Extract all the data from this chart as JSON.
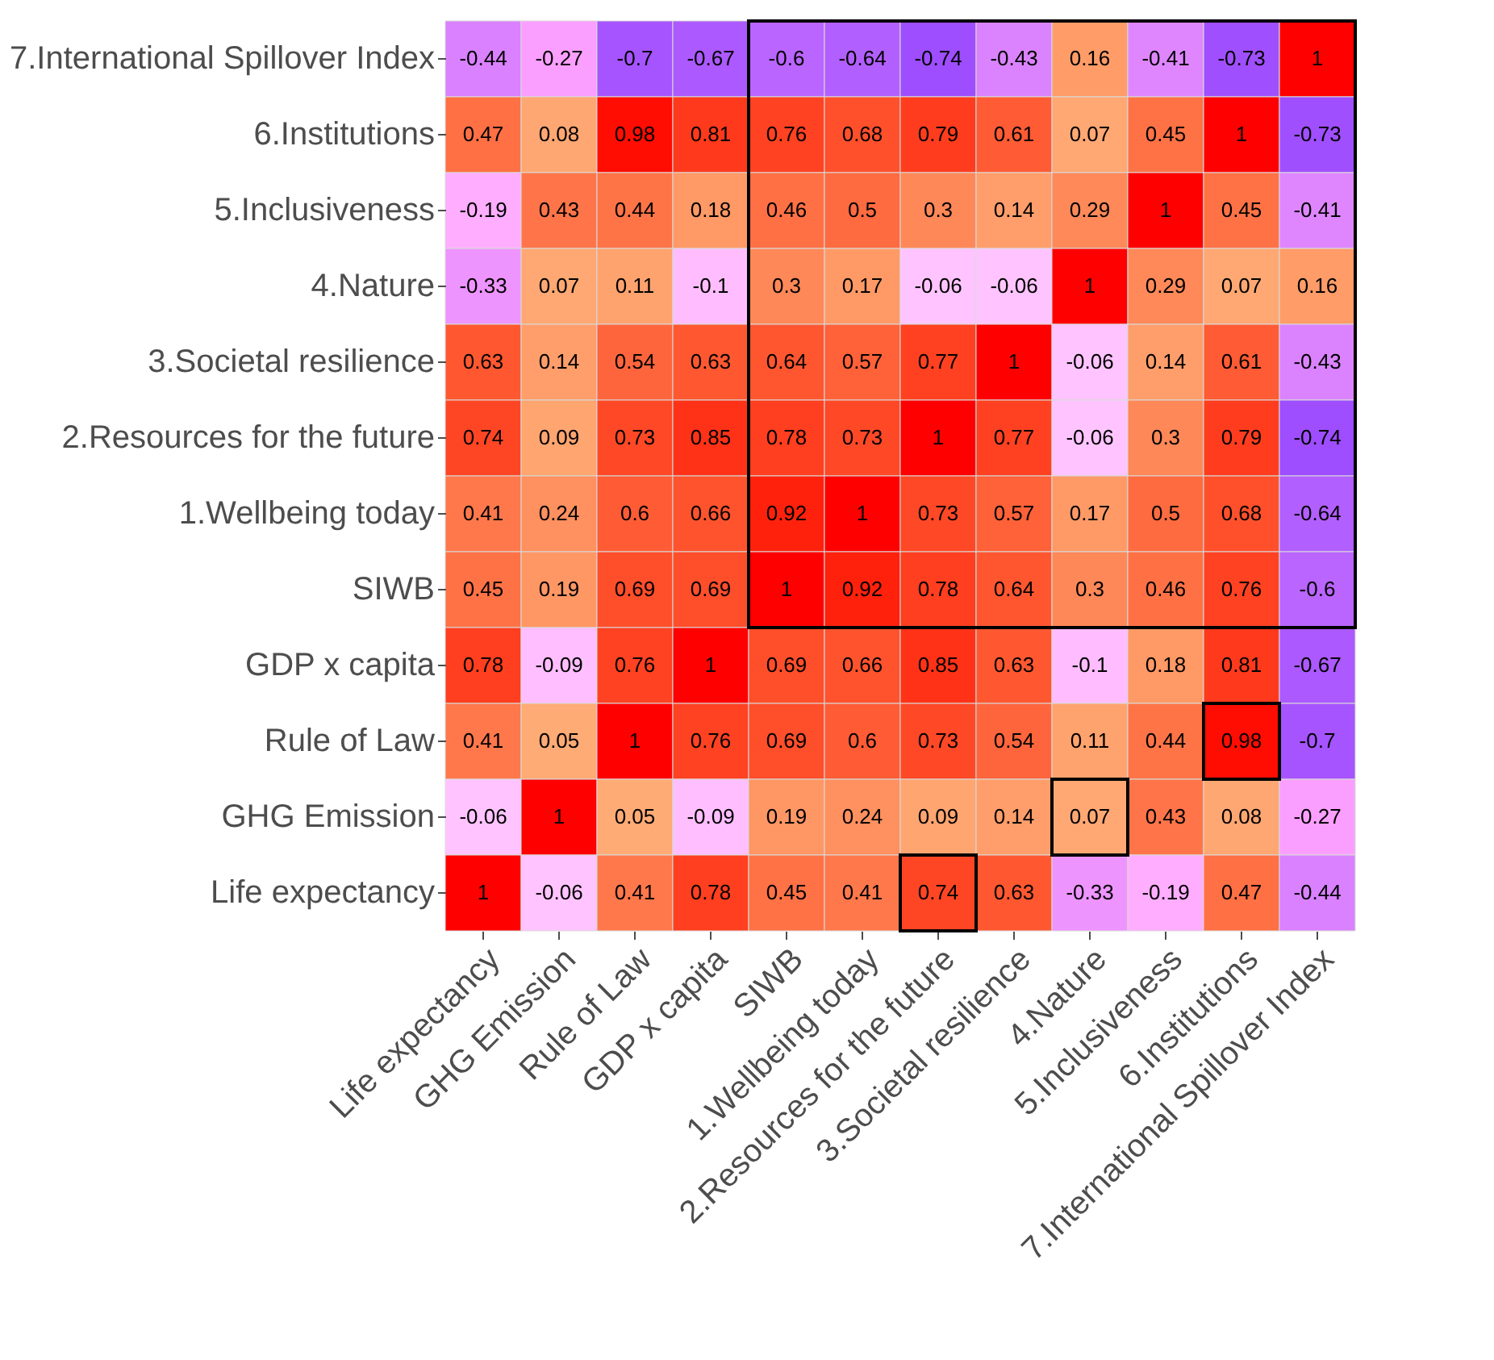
{
  "chart_data": {
    "type": "heatmap",
    "categories": [
      "Life expectancy",
      "GHG Emission",
      "Rule of Law",
      "GDP x capita",
      "SIWB",
      "1.Wellbeing today",
      "2.Resources for the future",
      "3.Societal resilience",
      "4.Nature",
      "5.Inclusiveness",
      "6.Institutions",
      "7.International Spillover Index"
    ],
    "y_categories": [
      "7.International Spillover Index",
      "6.Institutions",
      "5.Inclusiveness",
      "4.Nature",
      "3.Societal resilience",
      "2.Resources for the future",
      "1.Wellbeing today",
      "SIWB",
      "GDP x capita",
      "Rule of Law",
      "GHG Emission",
      "Life expectancy"
    ],
    "cells": [
      [
        -0.44,
        -0.27,
        -0.7,
        -0.67,
        -0.6,
        -0.64,
        -0.74,
        -0.43,
        0.16,
        -0.41,
        -0.73,
        1
      ],
      [
        0.47,
        0.08,
        0.98,
        0.81,
        0.76,
        0.68,
        0.79,
        0.61,
        0.07,
        0.45,
        1,
        -0.73
      ],
      [
        -0.19,
        0.43,
        0.44,
        0.18,
        0.46,
        0.5,
        0.3,
        0.14,
        0.29,
        1,
        0.45,
        -0.41
      ],
      [
        -0.33,
        0.07,
        0.11,
        -0.1,
        0.3,
        0.17,
        -0.06,
        -0.06,
        1,
        0.29,
        0.07,
        0.16
      ],
      [
        0.63,
        0.14,
        0.54,
        0.63,
        0.64,
        0.57,
        0.77,
        1,
        -0.06,
        0.14,
        0.61,
        -0.43
      ],
      [
        0.74,
        0.09,
        0.73,
        0.85,
        0.78,
        0.73,
        1,
        0.77,
        -0.06,
        0.3,
        0.79,
        -0.74
      ],
      [
        0.41,
        0.24,
        0.6,
        0.66,
        0.92,
        1,
        0.73,
        0.57,
        0.17,
        0.5,
        0.68,
        -0.64
      ],
      [
        0.45,
        0.19,
        0.69,
        0.69,
        1,
        0.92,
        0.78,
        0.64,
        0.3,
        0.46,
        0.76,
        -0.6
      ],
      [
        0.78,
        -0.09,
        0.76,
        1,
        0.69,
        0.66,
        0.85,
        0.63,
        -0.1,
        0.18,
        0.81,
        -0.67
      ],
      [
        0.41,
        0.05,
        1,
        0.76,
        0.69,
        0.6,
        0.73,
        0.54,
        0.11,
        0.44,
        0.98,
        -0.7
      ],
      [
        -0.06,
        1,
        0.05,
        -0.09,
        0.19,
        0.24,
        0.09,
        0.14,
        0.07,
        0.43,
        0.08,
        -0.27
      ],
      [
        1,
        -0.06,
        0.41,
        0.78,
        0.45,
        0.41,
        0.74,
        0.63,
        -0.33,
        -0.19,
        0.47,
        -0.44
      ]
    ],
    "data_labels": true
  }
}
